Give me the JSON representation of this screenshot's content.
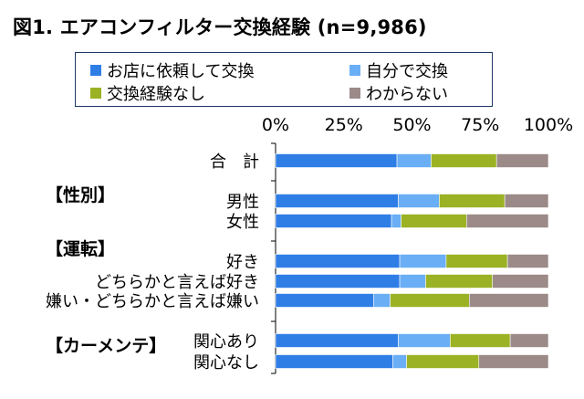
{
  "title": "図1. エアコンフィルター交換経験 (n=9,986)",
  "chart_data": {
    "type": "bar",
    "orientation": "horizontal",
    "stacked": true,
    "xlim": [
      0,
      100
    ],
    "ticks": [
      "0%",
      "25%",
      "50%",
      "75%",
      "100%"
    ],
    "legend": [
      {
        "name": "お店に依頼して交換",
        "color": "#2f7ee6"
      },
      {
        "name": "自分で交換",
        "color": "#6aaef5"
      },
      {
        "name": "交換経験なし",
        "color": "#9bb224"
      },
      {
        "name": "わからない",
        "color": "#9b8a88"
      }
    ],
    "sections": [
      {
        "label": "",
        "rows": [
          {
            "label": "合　計",
            "values": [
              44.5,
              12.5,
              24,
              19
            ]
          }
        ]
      },
      {
        "label": "【性別】",
        "rows": [
          {
            "label": "男性",
            "values": [
              45,
              15,
              24,
              16
            ]
          },
          {
            "label": "女性",
            "values": [
              42.5,
              3.5,
              24,
              30
            ]
          }
        ]
      },
      {
        "label": "【運転】",
        "rows": [
          {
            "label": "好き",
            "values": [
              45.5,
              17,
              22.5,
              15
            ]
          },
          {
            "label": "どちらかと言えば好き",
            "values": [
              45.5,
              9.5,
              24.5,
              20.5
            ]
          },
          {
            "label": "嫌い・どちらかと言えば嫌い",
            "values": [
              36,
              6,
              29,
              29
            ]
          }
        ]
      },
      {
        "label": "【カーメンテ】",
        "rows": [
          {
            "label": "関心あり",
            "values": [
              45,
              19,
              22,
              14
            ]
          },
          {
            "label": "関心なし",
            "values": [
              43,
              5,
              26.5,
              25.5
            ]
          }
        ]
      }
    ]
  }
}
